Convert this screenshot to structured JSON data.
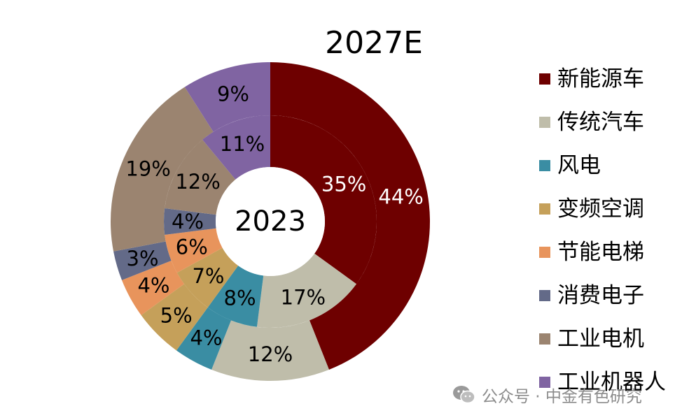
{
  "chart_data": {
    "type": "donut",
    "title": "2027E",
    "center_label": "2023",
    "categories": [
      "新能源车",
      "传统汽车",
      "风电",
      "变频空调",
      "节能电梯",
      "消费电子",
      "工业电机",
      "工业机器人"
    ],
    "colors": [
      "#6e0000",
      "#bfbdaa",
      "#3a8da3",
      "#c5a05a",
      "#e8945c",
      "#636a88",
      "#9b8470",
      "#8064a2"
    ],
    "series": [
      {
        "name": "2023",
        "ring": "inner",
        "values": [
          35,
          17,
          8,
          7,
          6,
          4,
          12,
          11
        ],
        "labels": [
          "35%",
          "17%",
          "8%",
          "7%",
          "6%",
          "4%",
          "12%",
          "11%"
        ]
      },
      {
        "name": "2027E",
        "ring": "outer",
        "values": [
          44,
          12,
          4,
          5,
          4,
          3,
          19,
          9
        ],
        "labels": [
          "44%",
          "12%",
          "4%",
          "5%",
          "4%",
          "3%",
          "19%",
          "9%"
        ]
      }
    ],
    "legend_position": "right"
  },
  "watermark": {
    "text": "公众号 · 中金有色研究",
    "icon": "wechat-icon"
  }
}
